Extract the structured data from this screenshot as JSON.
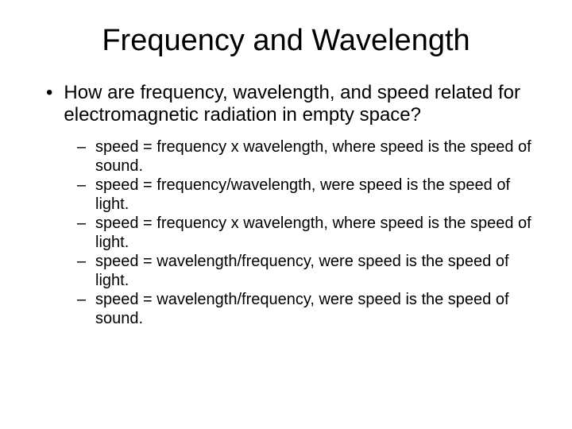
{
  "title": "Frequency and Wavelength",
  "main_bullet_marker": "•",
  "question": "How are frequency, wavelength, and speed related for electromagnetic radiation in empty space?",
  "sub_bullet_marker": "–",
  "options": [
    "speed = frequency x wavelength, where speed is the speed of sound.",
    "speed = frequency/wavelength, were speed is the speed of light.",
    "speed = frequency x wavelength, where speed is the speed of light.",
    "speed = wavelength/frequency, were speed is the speed of light.",
    "speed = wavelength/frequency, were speed is the speed of sound."
  ],
  "colors": {
    "background": "#ffffff",
    "text": "#000000"
  },
  "typography": {
    "title_fontsize": 38,
    "question_fontsize": 24,
    "option_fontsize": 20,
    "font_family": "Arial"
  }
}
